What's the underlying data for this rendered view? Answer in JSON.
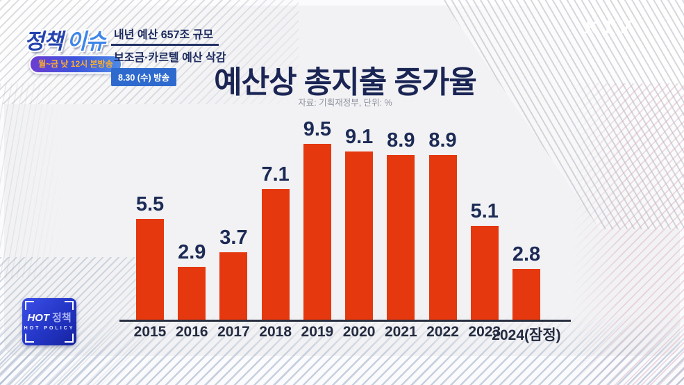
{
  "header": {
    "logo": {
      "part1": "정책",
      "part2": "이슈"
    },
    "schedule_pill": "월~금 낮 12시 본방송",
    "topic_line1": "내년 예산 657조 규모",
    "topic_line2": "보조금·카르텔 예산 삭감",
    "broadcast_badge": "8.30 (수) 방송",
    "station": "KTV"
  },
  "chart_data": {
    "type": "bar",
    "title": "예산상 총지출 증가율",
    "subtitle": "자료: 기획재정부, 단위: %",
    "source": "기획재정부",
    "unit": "%",
    "categories": [
      "2015",
      "2016",
      "2017",
      "2018",
      "2019",
      "2020",
      "2021",
      "2022",
      "2023",
      "2024(잠정)"
    ],
    "values": [
      5.5,
      2.9,
      3.7,
      7.1,
      9.5,
      9.1,
      8.9,
      8.9,
      5.1,
      2.8
    ],
    "ylim": [
      0,
      10
    ],
    "grid": false,
    "legend": "none",
    "bar_color": "#e5380f",
    "value_label_color": "#1c2a55",
    "axis_color": "#2a3040"
  },
  "hot_badge": {
    "line1_en": "HOT",
    "line1_kr": "정책",
    "line2": "HOT POLICY"
  },
  "colors": {
    "card_bg": "#f2f2f4",
    "title_navy": "#1a2554",
    "pill_text": "#ffb028",
    "broadcast_badge_bg": "#2e6ace",
    "hot_badge_blue": "#2335c4"
  }
}
